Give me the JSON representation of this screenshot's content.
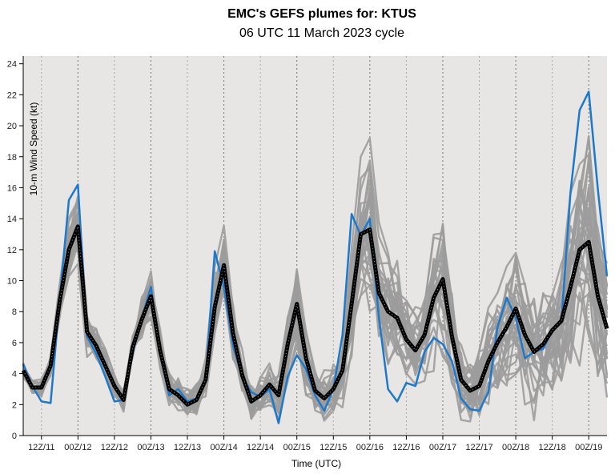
{
  "chart_data": {
    "type": "line",
    "title": "EMC's GEFS plumes for: KTUS",
    "subtitle": "06 UTC 11 March 2023 cycle",
    "xlabel": "Time (UTC)",
    "ylabel": "10-m Wind Speed (kt)",
    "ylim": [
      0,
      24.5
    ],
    "yticks": [
      "0",
      "2",
      "4",
      "6",
      "8",
      "10",
      "12",
      "14",
      "16",
      "18",
      "20",
      "22",
      "24"
    ],
    "xlim": [
      0,
      8.0
    ],
    "xticks": [
      {
        "x": 0.25,
        "label": "12Z/11"
      },
      {
        "x": 0.75,
        "label": "00Z/12"
      },
      {
        "x": 1.25,
        "label": "12Z/12"
      },
      {
        "x": 1.75,
        "label": "00Z/13"
      },
      {
        "x": 2.25,
        "label": "12Z/13"
      },
      {
        "x": 2.75,
        "label": "00Z/14"
      },
      {
        "x": 3.25,
        "label": "12Z/14"
      },
      {
        "x": 3.75,
        "label": "00Z/15"
      },
      {
        "x": 4.25,
        "label": "12Z/15"
      },
      {
        "x": 4.75,
        "label": "00Z/16"
      },
      {
        "x": 5.25,
        "label": "12Z/16"
      },
      {
        "x": 5.75,
        "label": "00Z/17"
      },
      {
        "x": 6.25,
        "label": "12Z/17"
      },
      {
        "x": 6.75,
        "label": "00Z/18"
      },
      {
        "x": 7.25,
        "label": "12Z/18"
      },
      {
        "x": 7.75,
        "label": "00Z/19"
      }
    ],
    "grid": "vertical dotted",
    "x_step": 0.125,
    "series": [
      {
        "role": "mean",
        "color": "#000000",
        "values": [
          4.2,
          3.1,
          3.1,
          4.5,
          8.7,
          12.0,
          13.5,
          6.7,
          5.8,
          4.5,
          3.2,
          2.3,
          5.7,
          7.5,
          9.0,
          5.5,
          3.0,
          2.6,
          2.0,
          2.3,
          3.6,
          8.3,
          11.0,
          6.6,
          3.9,
          2.2,
          2.6,
          3.3,
          2.6,
          5.9,
          8.5,
          5.0,
          2.9,
          2.4,
          3.0,
          4.2,
          8.5,
          13.0,
          13.3,
          9.2,
          8.0,
          7.6,
          6.2,
          5.5,
          6.5,
          8.9,
          10.1,
          6.4,
          3.6,
          2.9,
          3.2,
          4.8,
          6.0,
          7.0,
          8.2,
          6.5,
          5.4,
          5.9,
          6.8,
          7.4,
          9.6,
          12.0,
          12.5,
          9.0,
          6.9
        ]
      },
      {
        "role": "control",
        "color": "#1f78c8",
        "values": [
          4.6,
          3.2,
          2.2,
          2.1,
          8.8,
          15.2,
          16.2,
          6.4,
          5.3,
          3.8,
          2.2,
          2.3,
          5.3,
          7.6,
          9.6,
          5.3,
          2.6,
          3.0,
          2.2,
          2.4,
          3.6,
          11.9,
          9.6,
          5.8,
          3.8,
          2.8,
          2.5,
          3.0,
          0.8,
          3.8,
          5.2,
          4.3,
          2.6,
          1.6,
          3.0,
          6.5,
          14.3,
          12.9,
          14.0,
          7.6,
          3.0,
          2.2,
          3.4,
          3.2,
          5.4,
          6.3,
          5.9,
          4.8,
          2.4,
          1.7,
          1.6,
          2.8,
          7.0,
          8.9,
          7.6,
          5.0,
          5.4,
          5.6,
          6.8,
          7.3,
          15.7,
          21.0,
          22.2,
          15.9,
          10.3
        ]
      }
    ]
  }
}
